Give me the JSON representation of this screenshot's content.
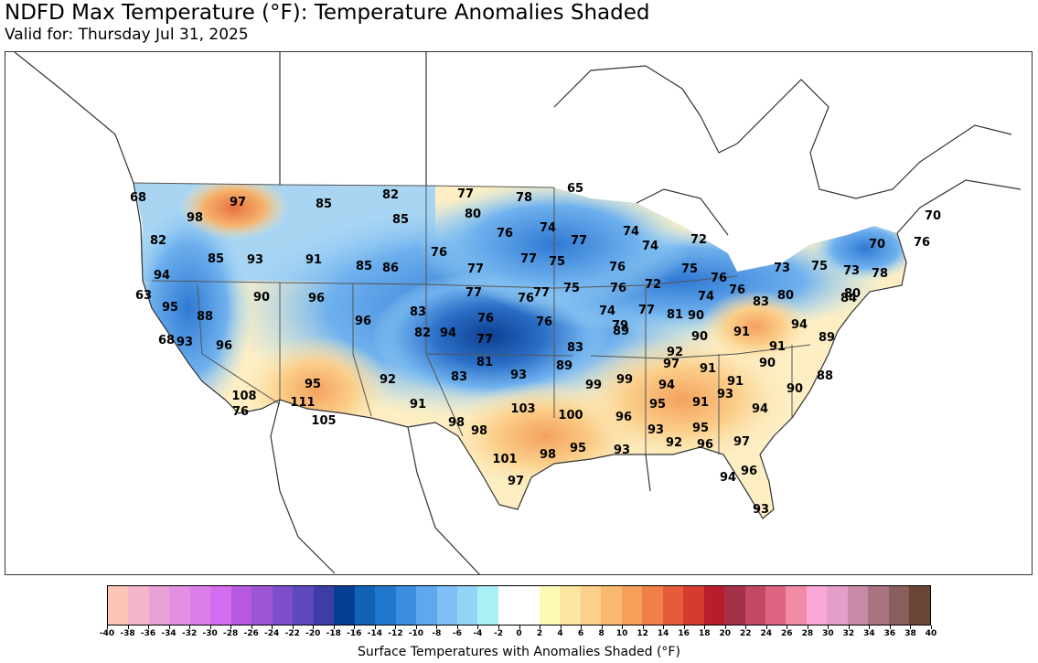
{
  "header": {
    "title": "NDFD Max Temperature (°F): Temperature Anomalies Shaded",
    "subtitle": "Valid for: Thursday Jul 31, 2025"
  },
  "colors": {
    "cold_deep": "#0a3d8f",
    "cold_mid": "#3a7fd8",
    "cold_light": "#8cc4f2",
    "neutral": "#ffffff",
    "warm_light": "#fde6b0",
    "warm_mid": "#f5b56a",
    "warm_strong": "#e86a3c"
  },
  "colorbar": {
    "caption": "Surface Temperatures with Anomalies Shaded (°F)",
    "ticks": [
      "-40",
      "-38",
      "-36",
      "-34",
      "-32",
      "-30",
      "-28",
      "-26",
      "-24",
      "-22",
      "-20",
      "-18",
      "-16",
      "-14",
      "-12",
      "-10",
      "-8",
      "-6",
      "-4",
      "-2",
      "0",
      "2",
      "4",
      "6",
      "8",
      "10",
      "12",
      "14",
      "16",
      "18",
      "20",
      "22",
      "24",
      "26",
      "28",
      "30",
      "32",
      "34",
      "36",
      "38",
      "40"
    ],
    "swatches": [
      "#fbc6b6",
      "#f4b6cc",
      "#eaa1d8",
      "#e28fe2",
      "#dc7ee9",
      "#d46cf0",
      "#b659e0",
      "#9b55d6",
      "#7d4ecb",
      "#5d48bd",
      "#3e3da8",
      "#063d95",
      "#1363b4",
      "#2177cc",
      "#3b8ddf",
      "#5ea8ef",
      "#7ec0f6",
      "#92d4f8",
      "#a8f0f6",
      "#ffffff",
      "#ffffff",
      "#fdfab6",
      "#fde5a2",
      "#fcd08a",
      "#f9b86e",
      "#f69f58",
      "#f07f48",
      "#e65c3b",
      "#d73a2f",
      "#b91c2c",
      "#a43148",
      "#c24961",
      "#df6383",
      "#f08aa5",
      "#f9a8d7",
      "#e39fc9",
      "#c98aa8",
      "#a9737f",
      "#8a5e5f",
      "#6b4535"
    ]
  },
  "stations": [
    {
      "v": "68"
    },
    {
      "v": "97"
    },
    {
      "v": "98"
    },
    {
      "v": "85"
    },
    {
      "v": "82"
    },
    {
      "v": "85"
    },
    {
      "v": "77"
    },
    {
      "v": "78"
    },
    {
      "v": "65"
    },
    {
      "v": "80"
    },
    {
      "v": "82"
    },
    {
      "v": "76"
    },
    {
      "v": "74"
    },
    {
      "v": "77"
    },
    {
      "v": "74"
    },
    {
      "v": "70"
    },
    {
      "v": "85"
    },
    {
      "v": "93"
    },
    {
      "v": "91"
    },
    {
      "v": "74"
    },
    {
      "v": "72"
    },
    {
      "v": "70"
    },
    {
      "v": "76"
    },
    {
      "v": "94"
    },
    {
      "v": "85"
    },
    {
      "v": "86"
    },
    {
      "v": "76"
    },
    {
      "v": "77"
    },
    {
      "v": "77"
    },
    {
      "v": "75"
    },
    {
      "v": "76"
    },
    {
      "v": "75"
    },
    {
      "v": "76"
    },
    {
      "v": "73"
    },
    {
      "v": "75"
    },
    {
      "v": "73"
    },
    {
      "v": "78"
    },
    {
      "v": "63"
    },
    {
      "v": "95"
    },
    {
      "v": "90"
    },
    {
      "v": "96"
    },
    {
      "v": "77"
    },
    {
      "v": "76"
    },
    {
      "v": "77"
    },
    {
      "v": "75"
    },
    {
      "v": "76"
    },
    {
      "v": "72"
    },
    {
      "v": "74"
    },
    {
      "v": "76"
    },
    {
      "v": "83"
    },
    {
      "v": "80"
    },
    {
      "v": "84"
    },
    {
      "v": "80"
    },
    {
      "v": "88"
    },
    {
      "v": "96"
    },
    {
      "v": "83"
    },
    {
      "v": "76"
    },
    {
      "v": "76"
    },
    {
      "v": "74"
    },
    {
      "v": "77"
    },
    {
      "v": "79"
    },
    {
      "v": "81"
    },
    {
      "v": "90"
    },
    {
      "v": "68"
    },
    {
      "v": "93"
    },
    {
      "v": "94"
    },
    {
      "v": "89"
    },
    {
      "v": "82"
    },
    {
      "v": "77"
    },
    {
      "v": "83"
    },
    {
      "v": "90"
    },
    {
      "v": "91"
    },
    {
      "v": "94"
    },
    {
      "v": "89"
    },
    {
      "v": "91"
    },
    {
      "v": "96"
    },
    {
      "v": "81"
    },
    {
      "v": "92"
    },
    {
      "v": "97"
    },
    {
      "v": "91"
    },
    {
      "v": "90"
    },
    {
      "v": "95"
    },
    {
      "v": "92"
    },
    {
      "v": "83"
    },
    {
      "v": "93"
    },
    {
      "v": "89"
    },
    {
      "v": "99"
    },
    {
      "v": "99"
    },
    {
      "v": "94"
    },
    {
      "v": "91"
    },
    {
      "v": "88"
    },
    {
      "v": "108"
    },
    {
      "v": "111"
    },
    {
      "v": "91"
    },
    {
      "v": "103"
    },
    {
      "v": "95"
    },
    {
      "v": "91"
    },
    {
      "v": "93"
    },
    {
      "v": "90"
    },
    {
      "v": "76"
    },
    {
      "v": "105"
    },
    {
      "v": "98"
    },
    {
      "v": "98"
    },
    {
      "v": "100"
    },
    {
      "v": "96"
    },
    {
      "v": "94"
    },
    {
      "v": "93"
    },
    {
      "v": "95"
    },
    {
      "v": "101"
    },
    {
      "v": "98"
    },
    {
      "v": "95"
    },
    {
      "v": "93"
    },
    {
      "v": "92"
    },
    {
      "v": "96"
    },
    {
      "v": "97"
    },
    {
      "v": "97"
    },
    {
      "v": "94"
    },
    {
      "v": "96"
    },
    {
      "v": "93"
    }
  ]
}
